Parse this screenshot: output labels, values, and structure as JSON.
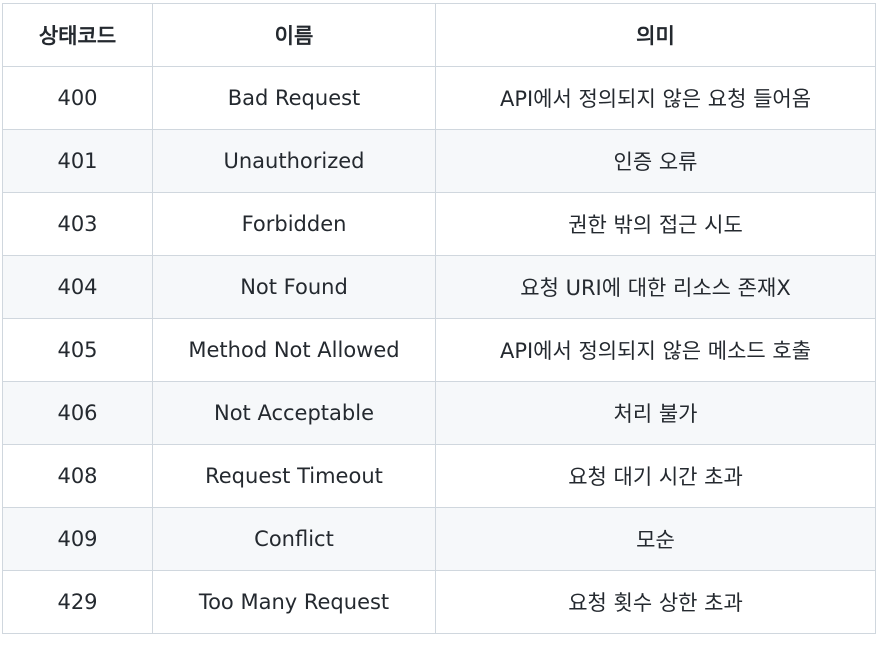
{
  "table": {
    "headers": [
      "상태코드",
      "이름",
      "의미"
    ],
    "rows": [
      {
        "code": "400",
        "name": "Bad Request",
        "meaning": "API에서 정의되지 않은 요청 들어옴"
      },
      {
        "code": "401",
        "name": "Unauthorized",
        "meaning": "인증 오류"
      },
      {
        "code": "403",
        "name": "Forbidden",
        "meaning": "권한 밖의 접근 시도"
      },
      {
        "code": "404",
        "name": "Not Found",
        "meaning": "요청 URI에 대한 리소스 존재X"
      },
      {
        "code": "405",
        "name": "Method Not Allowed",
        "meaning": "API에서 정의되지 않은 메소드 호출"
      },
      {
        "code": "406",
        "name": "Not Acceptable",
        "meaning": "처리 불가"
      },
      {
        "code": "408",
        "name": "Request Timeout",
        "meaning": "요청 대기 시간 초과"
      },
      {
        "code": "409",
        "name": "Conflict",
        "meaning": "모순"
      },
      {
        "code": "429",
        "name": "Too Many Request",
        "meaning": "요청 횟수 상한 초과"
      }
    ]
  },
  "colors": {
    "border": "#d0d7de",
    "stripe": "#f6f8fa",
    "text": "#24292f"
  }
}
